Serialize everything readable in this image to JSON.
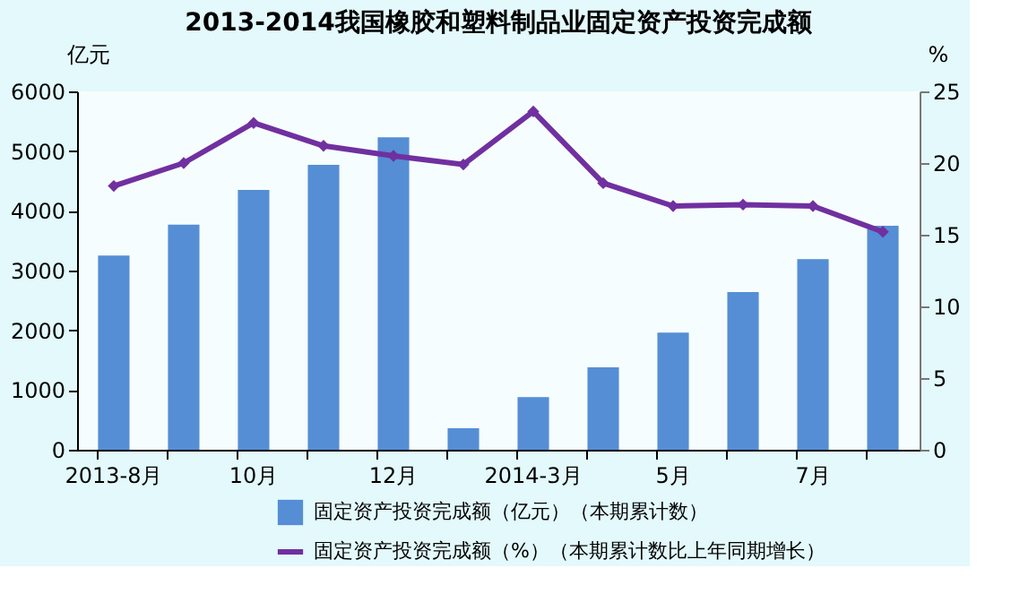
{
  "chart_data": {
    "type": "bar",
    "title": "2013-2014我国橡胶和塑料制品业固定资产投资完成额",
    "ylabel": "亿元",
    "y2label": "%",
    "categories": [
      "2013-8月",
      null,
      "10月",
      null,
      "12月",
      null,
      "2014-3月",
      null,
      "5月",
      null,
      "7月",
      null
    ],
    "series": [
      {
        "name": "固定资产投资完成额（亿元）（本期累计数）",
        "color": "#558ed5",
        "values": [
          3250,
          3770,
          4350,
          4770,
          5230,
          360,
          880,
          1380,
          1960,
          2640,
          3190,
          3750
        ]
      },
      {
        "name": "固定资产投资完成额（%）（本期累计数比上年同期增长）",
        "type": "line",
        "axis": "y2",
        "color": "#7030a0",
        "marker": "diamond",
        "values": [
          18.4,
          20.0,
          22.8,
          21.2,
          20.5,
          19.9,
          23.6,
          18.6,
          17.0,
          17.1,
          17.0,
          15.2
        ]
      }
    ],
    "ylim": [
      0,
      6000
    ],
    "yticks": [
      0,
      1000,
      2000,
      3000,
      4000,
      5000,
      6000
    ],
    "y2lim": [
      0,
      25
    ],
    "y2ticks": [
      0,
      5,
      10,
      15,
      20,
      25
    ],
    "grid": false,
    "legend": "bottom"
  }
}
